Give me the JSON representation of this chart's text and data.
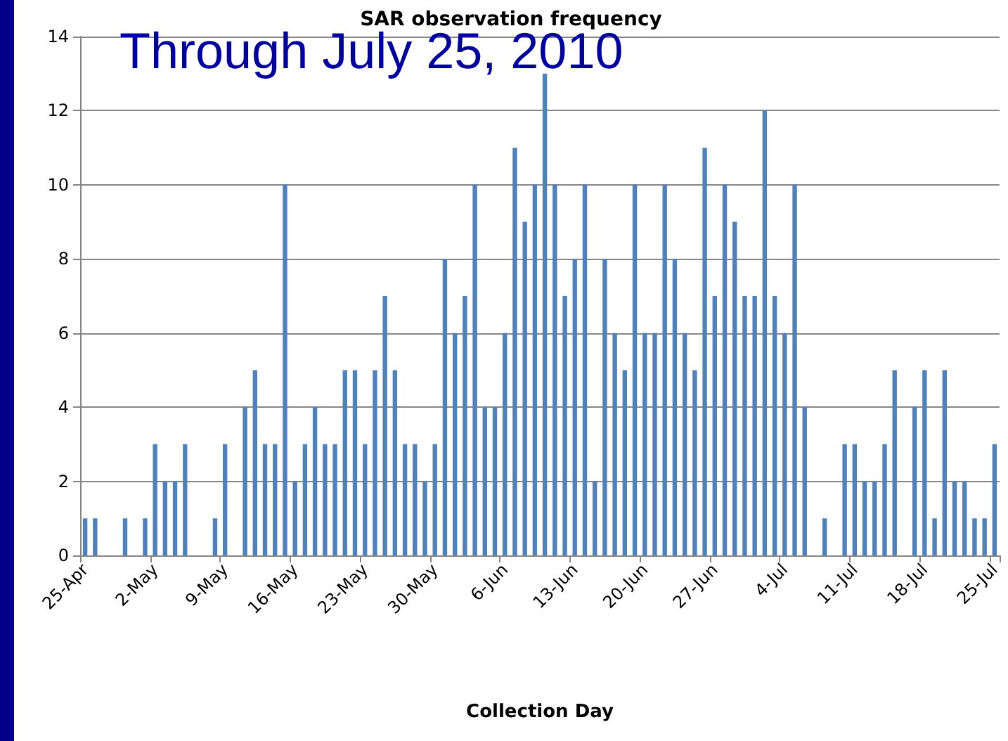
{
  "chart_data": {
    "type": "bar",
    "title": "SAR observation frequency",
    "xlabel": "Collection Day",
    "annotations": [
      "Through July 25, 2010"
    ],
    "categories": [
      "25-Apr",
      null,
      null,
      null,
      null,
      null,
      null,
      "2-May",
      null,
      null,
      null,
      null,
      null,
      null,
      "9-May",
      null,
      null,
      null,
      null,
      null,
      null,
      "16-May",
      null,
      null,
      null,
      null,
      null,
      null,
      "23-May",
      null,
      null,
      null,
      null,
      null,
      null,
      "30-May",
      null,
      null,
      null,
      null,
      null,
      null,
      "6-Jun",
      null,
      null,
      null,
      null,
      null,
      null,
      "13-Jun",
      null,
      null,
      null,
      null,
      null,
      null,
      "20-Jun",
      null,
      null,
      null,
      null,
      null,
      null,
      "27-Jun",
      null,
      null,
      null,
      null,
      null,
      null,
      "4-Jul",
      null,
      null,
      null,
      null,
      null,
      null,
      "11-Jul",
      null,
      null,
      null,
      null,
      null,
      null,
      "18-Jul",
      null,
      null,
      null,
      null,
      null,
      null,
      "25-Jul"
    ],
    "values": [
      1,
      1,
      0,
      0,
      1,
      0,
      1,
      3,
      2,
      2,
      3,
      0,
      0,
      1,
      3,
      0,
      4,
      5,
      3,
      3,
      10,
      2,
      3,
      4,
      3,
      3,
      5,
      5,
      3,
      5,
      7,
      5,
      3,
      3,
      2,
      3,
      8,
      6,
      7,
      10,
      4,
      4,
      6,
      11,
      9,
      10,
      13,
      10,
      7,
      8,
      10,
      2,
      8,
      6,
      5,
      10,
      6,
      6,
      10,
      8,
      6,
      5,
      11,
      7,
      10,
      9,
      7,
      7,
      12,
      7,
      6,
      10,
      4,
      0,
      1,
      0,
      3,
      3,
      2,
      2,
      3,
      5,
      0,
      4,
      5,
      1,
      5,
      2,
      2,
      1,
      1,
      3
    ],
    "color": "#4f81bd",
    "ylim": [
      0,
      14
    ],
    "yticks": [
      0,
      2,
      4,
      6,
      8,
      10,
      12,
      14
    ],
    "grid": "y"
  }
}
